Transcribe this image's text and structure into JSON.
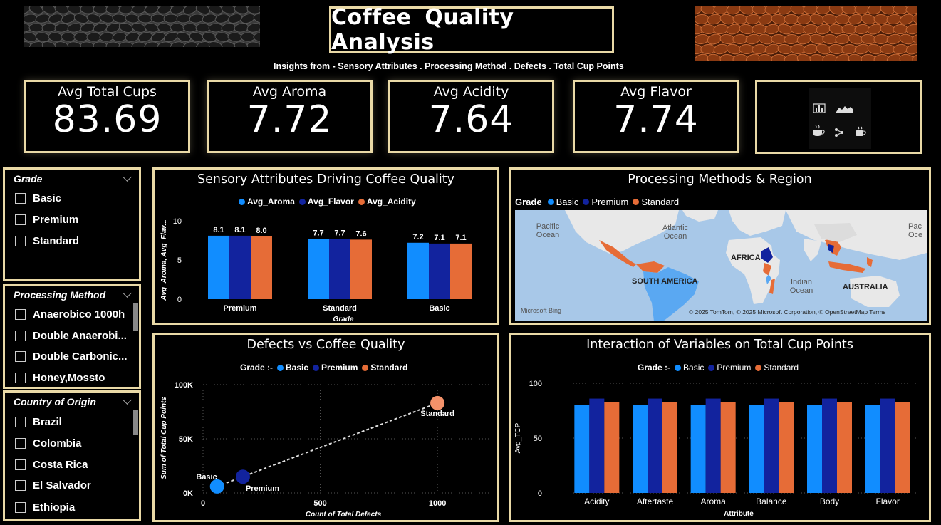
{
  "header": {
    "title": "Coffee  Quality  Analysis",
    "insights": "Insights from -  Sensory Attributes  .  Processing Method  .  Defects  . Total Cup Points"
  },
  "kpis": [
    {
      "label": "Avg Total Cups",
      "value": "83.69"
    },
    {
      "label": "Avg Aroma",
      "value": "7.72"
    },
    {
      "label": "Avg Acidity",
      "value": "7.64"
    },
    {
      "label": "Avg Flavor",
      "value": "7.74"
    }
  ],
  "nav_icons": [
    "bar-chart-icon",
    "area-chart-icon",
    "coffee-cup-icon",
    "network-icon",
    "coffee-mug-icon"
  ],
  "slicers": {
    "grade": {
      "title": "Grade",
      "items": [
        "Basic",
        "Premium",
        "Standard"
      ]
    },
    "processing": {
      "title": "Processing Method",
      "items": [
        "Anaerobico 1000h",
        "Double Anaerobi...",
        "Double Carbonic...",
        "Honey,Mossto"
      ]
    },
    "country": {
      "title": "Country of Origin",
      "items": [
        "Brazil",
        "Colombia",
        "Costa Rica",
        "El Salvador",
        "Ethiopia"
      ]
    }
  },
  "colors": {
    "basic": "#118dff",
    "premium": "#12239e",
    "standard": "#e66c37",
    "border": "#e9d9a6"
  },
  "chart_data": [
    {
      "type": "bar",
      "title": "Sensory Attributes Driving Coffee Quality",
      "legend": "top",
      "categories": [
        "Premium",
        "Standard",
        "Basic"
      ],
      "series": [
        {
          "name": "Avg_Aroma",
          "values": [
            8.1,
            7.7,
            7.2
          ]
        },
        {
          "name": "Avg_Flavor",
          "values": [
            8.1,
            7.7,
            7.1
          ]
        },
        {
          "name": "Avg_Acidity",
          "values": [
            8.0,
            7.6,
            7.1
          ]
        }
      ],
      "xlabel": "Grade",
      "ylabel": "Avg_Aroma, Avg_Flav...",
      "yticks": [
        "0",
        "5",
        "10"
      ],
      "ylim": [
        0,
        10
      ]
    },
    {
      "type": "scatter",
      "title": "Defects vs Coffee Quality",
      "legend_prefix": "Grade :-",
      "series": [
        {
          "name": "Basic",
          "x": 60,
          "y": 6000
        },
        {
          "name": "Premium",
          "x": 170,
          "y": 15000
        },
        {
          "name": "Standard",
          "x": 1000,
          "y": 83000
        }
      ],
      "xlabel": "Count of Total Defects",
      "ylabel": "Sum of Total Cup Points",
      "xticks": [
        "0",
        "500",
        "1000"
      ],
      "yticks": [
        "0K",
        "50K",
        "100K"
      ],
      "xlim": [
        0,
        1100
      ],
      "ylim": [
        0,
        100000
      ],
      "trendline": true
    },
    {
      "type": "bar",
      "title": "Interaction of Variables on Total Cup Points",
      "legend_prefix": "Grade :-",
      "categories": [
        "Acidity",
        "Aftertaste",
        "Aroma",
        "Balance",
        "Body",
        "Flavor"
      ],
      "series": [
        {
          "name": "Basic",
          "values": [
            80,
            80,
            80,
            80,
            80,
            80
          ]
        },
        {
          "name": "Premium",
          "values": [
            86,
            86,
            86,
            86,
            86,
            86
          ]
        },
        {
          "name": "Standard",
          "values": [
            83,
            83,
            83,
            83,
            83,
            83
          ]
        }
      ],
      "xlabel": "Attribute",
      "ylabel": "Avg_TCP",
      "yticks": [
        "0",
        "50",
        "100"
      ],
      "ylim": [
        0,
        100
      ]
    }
  ],
  "map": {
    "title": "Processing Methods & Region",
    "legend_title": "Grade",
    "legend_items": [
      "Basic",
      "Premium",
      "Standard"
    ],
    "labels": [
      "Pacific Ocean",
      "Atlantic Ocean",
      "Indian Ocean",
      "Pac Oce",
      "AFRICA",
      "SOUTH AMERICA",
      "AUSTRALIA"
    ],
    "attribution": "© 2025 TomTom, © 2025 Microsoft Corporation, © OpenStreetMap  Terms",
    "logo": "Microsoft Bing"
  }
}
